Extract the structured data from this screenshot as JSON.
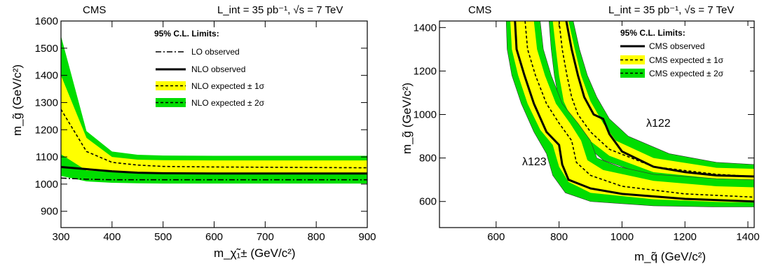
{
  "colors": {
    "band_1sigma": "#ffff00",
    "band_2sigma": "#00dd00",
    "line": "#000000"
  },
  "chart_data": [
    {
      "type": "line",
      "header_left": "CMS",
      "header_right": "L_int = 35 pb⁻¹,  √s = 7 TeV",
      "xlabel": "m_χ̃₁± (GeV/c²)",
      "ylabel": "m_g̃ (GeV/c²)",
      "xlim": [
        300,
        900
      ],
      "ylim": [
        840,
        1600
      ],
      "xticks": [
        "300",
        "400",
        "500",
        "600",
        "700",
        "800",
        "900"
      ],
      "yticks": [
        "900",
        "1000",
        "1100",
        "1200",
        "1300",
        "1400",
        "1500",
        "1600"
      ],
      "legend_title": "95% C.L. Limits:",
      "legend": [
        "LO observed",
        "NLO observed",
        "NLO expected ± 1σ",
        "NLO expected ± 2σ"
      ],
      "x": [
        300,
        350,
        400,
        450,
        500,
        600,
        700,
        800,
        900
      ],
      "series": [
        {
          "name": "LO observed",
          "style": "dashdot",
          "values": [
            1022,
            1018,
            1016,
            1016,
            1016,
            1016,
            1016,
            1016,
            1016
          ]
        },
        {
          "name": "NLO observed",
          "style": "solid",
          "values": [
            1063,
            1055,
            1047,
            1042,
            1040,
            1039,
            1039,
            1039,
            1039
          ]
        },
        {
          "name": "NLO expected",
          "style": "dashed",
          "values": [
            1275,
            1120,
            1080,
            1070,
            1065,
            1063,
            1062,
            1061,
            1060
          ]
        },
        {
          "name": "-1σ",
          "band": "1sigma",
          "values": [
            1110,
            1050,
            1045,
            1040,
            1038,
            1038,
            1037,
            1037,
            1037
          ]
        },
        {
          "name": "+1σ",
          "band": "1sigma",
          "values": [
            1400,
            1170,
            1100,
            1090,
            1088,
            1087,
            1087,
            1087,
            1087
          ]
        },
        {
          "name": "-2σ",
          "band": "2sigma",
          "values": [
            1030,
            1010,
            1005,
            1003,
            1002,
            1002,
            1002,
            1002,
            1002
          ]
        },
        {
          "name": "+2σ",
          "band": "2sigma",
          "values": [
            1545,
            1195,
            1120,
            1108,
            1105,
            1104,
            1104,
            1104,
            1104
          ]
        }
      ]
    },
    {
      "type": "line",
      "header_left": "CMS",
      "header_right": "L_int = 35 pb⁻¹,  √s = 7 TeV",
      "xlabel": "m_q̃  (GeV/c²)",
      "ylabel": "m_g̃  (GeV/c²)",
      "xlim": [
        420,
        1420
      ],
      "ylim": [
        480,
        1430
      ],
      "xticks": [
        "600",
        "800",
        "1000",
        "1200",
        "1400"
      ],
      "yticks": [
        "600",
        "800",
        "1000",
        "1200",
        "1400"
      ],
      "legend_title": "95% C.L. Limits:",
      "legend": [
        "CMS observed",
        "CMS expected ± 1σ",
        "CMS expected ± 2σ"
      ],
      "annotations": [
        "λ122",
        "λ123"
      ],
      "curves": [
        {
          "name": "λ122",
          "observed": [
            [
              823,
              1430
            ],
            [
              840,
              1300
            ],
            [
              860,
              1180
            ],
            [
              880,
              1080
            ],
            [
              910,
              1000
            ],
            [
              940,
              980
            ],
            [
              960,
              910
            ],
            [
              1000,
              830
            ],
            [
              1100,
              760
            ],
            [
              1200,
              735
            ],
            [
              1300,
              720
            ],
            [
              1420,
              715
            ]
          ],
          "expected": [
            [
              800,
              1430
            ],
            [
              810,
              1300
            ],
            [
              825,
              1180
            ],
            [
              840,
              1080
            ],
            [
              860,
              1000
            ],
            [
              900,
              920
            ],
            [
              960,
              840
            ],
            [
              1100,
              760
            ],
            [
              1300,
              725
            ],
            [
              1420,
              715
            ]
          ],
          "band1_upper": [
            [
              830,
              1430
            ],
            [
              850,
              1300
            ],
            [
              870,
              1180
            ],
            [
              900,
              1060
            ],
            [
              940,
              960
            ],
            [
              980,
              880
            ],
            [
              1100,
              800
            ],
            [
              1300,
              755
            ],
            [
              1420,
              750
            ]
          ],
          "band1_lower": [
            [
              780,
              1430
            ],
            [
              790,
              1300
            ],
            [
              800,
              1180
            ],
            [
              815,
              1060
            ],
            [
              840,
              980
            ],
            [
              880,
              900
            ],
            [
              960,
              810
            ],
            [
              1100,
              735
            ],
            [
              1300,
              705
            ],
            [
              1420,
              700
            ]
          ],
          "band2_upper": [
            [
              845,
              1430
            ],
            [
              865,
              1300
            ],
            [
              890,
              1180
            ],
            [
              920,
              1080
            ],
            [
              960,
              980
            ],
            [
              1020,
              900
            ],
            [
              1150,
              820
            ],
            [
              1300,
              780
            ],
            [
              1420,
              770
            ]
          ],
          "band2_lower": [
            [
              768,
              1430
            ],
            [
              775,
              1300
            ],
            [
              785,
              1180
            ],
            [
              800,
              1060
            ],
            [
              825,
              970
            ],
            [
              860,
              890
            ],
            [
              940,
              790
            ],
            [
              1100,
              710
            ],
            [
              1300,
              690
            ],
            [
              1420,
              685
            ]
          ]
        },
        {
          "name": "λ123",
          "observed": [
            [
              660,
              1430
            ],
            [
              665,
              1300
            ],
            [
              690,
              1180
            ],
            [
              720,
              1050
            ],
            [
              760,
              920
            ],
            [
              800,
              860
            ],
            [
              810,
              770
            ],
            [
              830,
              700
            ],
            [
              900,
              660
            ],
            [
              1000,
              635
            ],
            [
              1200,
              612
            ],
            [
              1420,
              600
            ]
          ],
          "expected": [
            [
              692,
              1430
            ],
            [
              700,
              1300
            ],
            [
              725,
              1180
            ],
            [
              760,
              1050
            ],
            [
              800,
              960
            ],
            [
              840,
              880
            ],
            [
              855,
              780
            ],
            [
              900,
              720
            ],
            [
              1000,
              670
            ],
            [
              1200,
              635
            ],
            [
              1420,
              620
            ]
          ],
          "band1_upper": [
            [
              720,
              1430
            ],
            [
              730,
              1300
            ],
            [
              755,
              1180
            ],
            [
              790,
              1050
            ],
            [
              835,
              960
            ],
            [
              870,
              880
            ],
            [
              890,
              790
            ],
            [
              940,
              745
            ],
            [
              1100,
              695
            ],
            [
              1300,
              670
            ],
            [
              1420,
              665
            ]
          ],
          "band1_lower": [
            [
              645,
              1430
            ],
            [
              650,
              1300
            ],
            [
              670,
              1180
            ],
            [
              700,
              1050
            ],
            [
              740,
              930
            ],
            [
              780,
              860
            ],
            [
              800,
              760
            ],
            [
              830,
              690
            ],
            [
              900,
              640
            ],
            [
              1100,
              610
            ],
            [
              1300,
              598
            ],
            [
              1420,
              595
            ]
          ],
          "band2_upper": [
            [
              740,
              1430
            ],
            [
              750,
              1300
            ],
            [
              775,
              1180
            ],
            [
              810,
              1050
            ],
            [
              860,
              960
            ],
            [
              900,
              880
            ],
            [
              920,
              800
            ],
            [
              990,
              760
            ],
            [
              1100,
              725
            ],
            [
              1300,
              705
            ],
            [
              1420,
              700
            ]
          ],
          "band2_lower": [
            [
              632,
              1430
            ],
            [
              635,
              1300
            ],
            [
              650,
              1180
            ],
            [
              680,
              1050
            ],
            [
              720,
              920
            ],
            [
              760,
              820
            ],
            [
              780,
              720
            ],
            [
              820,
              640
            ],
            [
              900,
              600
            ],
            [
              1100,
              580
            ],
            [
              1300,
              575
            ],
            [
              1420,
              575
            ]
          ]
        }
      ]
    }
  ]
}
